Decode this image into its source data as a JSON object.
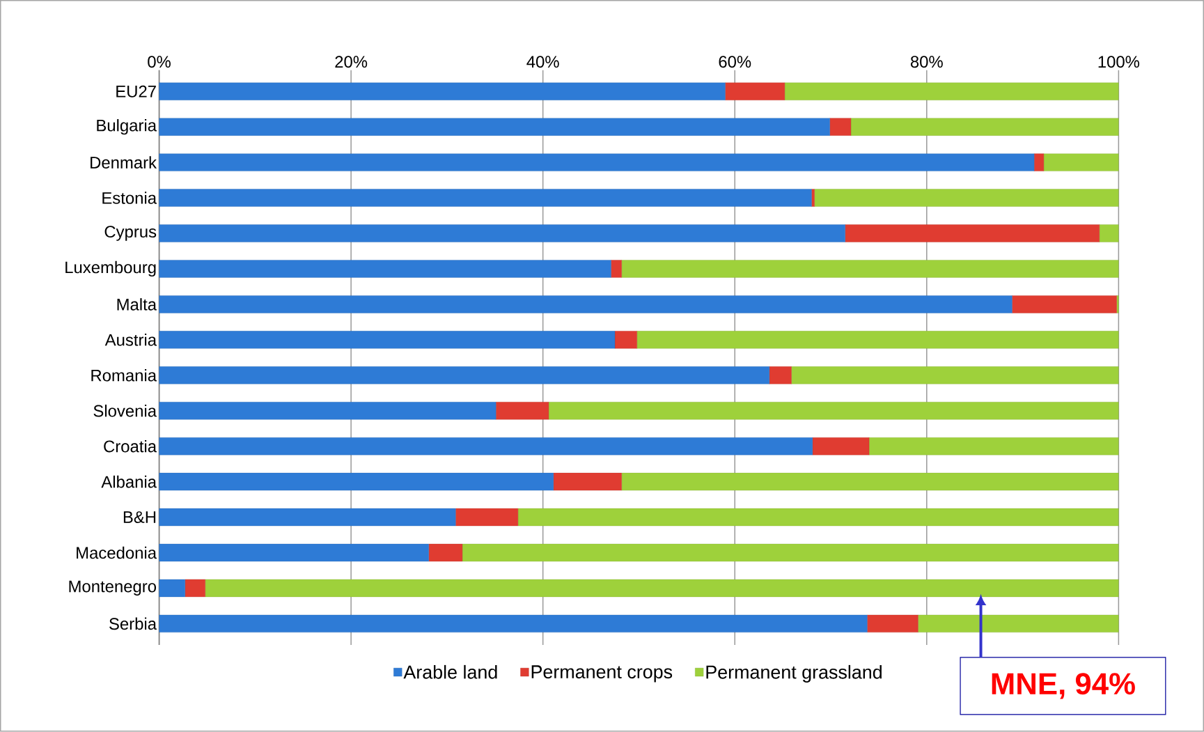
{
  "chart_data": {
    "type": "bar",
    "orientation": "horizontal",
    "stacked": true,
    "categories": [
      "EU27",
      "Bulgaria",
      "Denmark",
      "Estonia",
      "Cyprus",
      "Luxembourg",
      "Malta",
      "Austria",
      "Romania",
      "Slovenia",
      "Croatia",
      "Albania",
      "B&H",
      "Macedonia",
      "Montenegro",
      "Serbia"
    ],
    "series": [
      {
        "name": "Arable land",
        "color": "#2e7bd6",
        "values": [
          59.0,
          69.9,
          91.2,
          68.0,
          71.5,
          47.1,
          88.9,
          47.5,
          63.6,
          35.1,
          68.1,
          41.1,
          30.9,
          28.1,
          2.7,
          73.8
        ]
      },
      {
        "name": "Permanent crops",
        "color": "#e03c31",
        "values": [
          6.2,
          2.2,
          1.0,
          0.3,
          26.5,
          1.1,
          10.9,
          2.3,
          2.3,
          5.5,
          5.9,
          7.1,
          6.5,
          3.5,
          2.1,
          5.3
        ]
      },
      {
        "name": "Permanent grassland",
        "color": "#9ed13b",
        "values": [
          34.8,
          27.9,
          7.8,
          31.7,
          2.0,
          51.8,
          0.2,
          50.2,
          34.1,
          59.4,
          26.0,
          51.8,
          62.6,
          68.4,
          95.2,
          20.9
        ]
      }
    ],
    "xlim": [
      0,
      100
    ],
    "xticks": [
      {
        "value": 0,
        "label": "0%"
      },
      {
        "value": 20,
        "label": "20%"
      },
      {
        "value": 40,
        "label": "40%"
      },
      {
        "value": 60,
        "label": "60%"
      },
      {
        "value": 80,
        "label": "80%"
      },
      {
        "value": 100,
        "label": "100%"
      }
    ],
    "grid": "x",
    "legend": "bottom",
    "annotations": [
      "MNE, 94%"
    ]
  }
}
